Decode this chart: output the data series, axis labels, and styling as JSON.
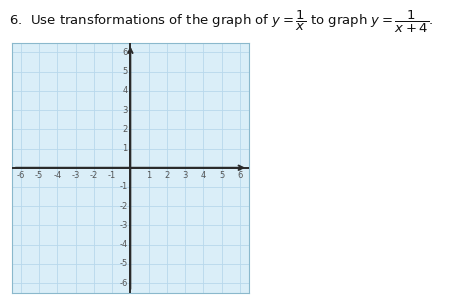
{
  "title_line1": "6.  Use transformations of the graph of $y = \\dfrac{1}{x}$ to graph $y = \\dfrac{1}{x+4}$.",
  "xlim": [
    -6.5,
    6.5
  ],
  "ylim": [
    -6.5,
    6.5
  ],
  "grid_color": "#b8d8ec",
  "axis_color": "#2a2a2a",
  "plot_bg": "#daeef8",
  "outer_bg": "#ffffff",
  "tick_label_color": "#555555",
  "tick_fontsize": 6,
  "title_fontsize": 9.5,
  "grid_linewidth": 0.6,
  "axis_linewidth": 1.4,
  "border_color": "#8ab8cc"
}
